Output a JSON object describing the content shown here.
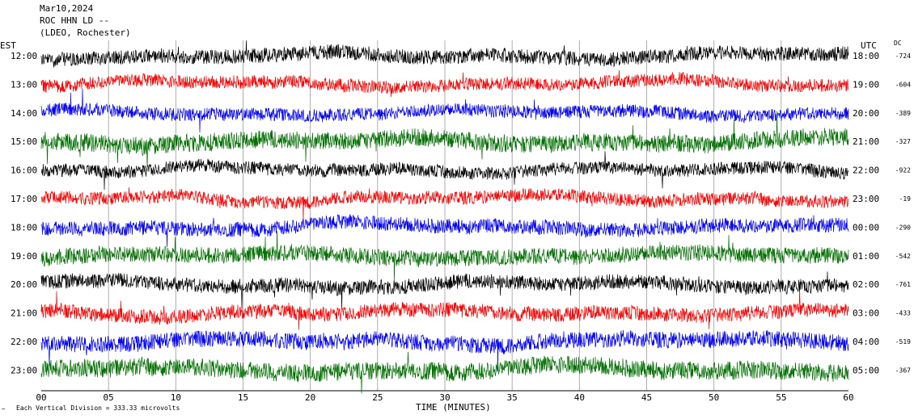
{
  "header": {
    "date": "Mar10,2024",
    "station": "ROC HHN LD --",
    "network": "(LDEO, Rochester)"
  },
  "labels": {
    "left_tz": "EST",
    "right_tz": "UTC",
    "dc": "DC",
    "xlabel": "TIME (MINUTES)",
    "scale_note": "Each Vertical Division = 333.33 microvolts"
  },
  "colors": {
    "black": "#000000",
    "red": "#ff0000",
    "blue": "#0000ff",
    "green": "#007000",
    "grid": "#9a9a9a"
  },
  "chart_data": {
    "type": "line",
    "title": "",
    "xlabel": "TIME (MINUTES)",
    "ylabel": "",
    "xlim": [
      0,
      60
    ],
    "x_ticks": [
      "00",
      "05",
      "10",
      "15",
      "20",
      "25",
      "30",
      "35",
      "40",
      "45",
      "50",
      "55",
      "60"
    ],
    "grid": true,
    "vertical_division_microvolts": 333.33,
    "rows": [
      {
        "est": "12:00",
        "utc": "18:00",
        "dc": "-724",
        "color": "black"
      },
      {
        "est": "13:00",
        "utc": "19:00",
        "dc": "-604",
        "color": "red"
      },
      {
        "est": "14:00",
        "utc": "20:00",
        "dc": "-389",
        "color": "blue"
      },
      {
        "est": "15:00",
        "utc": "21:00",
        "dc": "-327",
        "color": "green"
      },
      {
        "est": "16:00",
        "utc": "22:00",
        "dc": "-922",
        "color": "black"
      },
      {
        "est": "17:00",
        "utc": "23:00",
        "dc": "-19",
        "color": "red"
      },
      {
        "est": "18:00",
        "utc": "00:00",
        "dc": "-290",
        "color": "blue"
      },
      {
        "est": "19:00",
        "utc": "01:00",
        "dc": "-542",
        "color": "green"
      },
      {
        "est": "20:00",
        "utc": "02:00",
        "dc": "-761",
        "color": "black"
      },
      {
        "est": "21:00",
        "utc": "03:00",
        "dc": "-433",
        "color": "red"
      },
      {
        "est": "22:00",
        "utc": "04:00",
        "dc": "-519",
        "color": "blue"
      },
      {
        "est": "23:00",
        "utc": "05:00",
        "dc": "-367",
        "color": "green"
      }
    ]
  }
}
